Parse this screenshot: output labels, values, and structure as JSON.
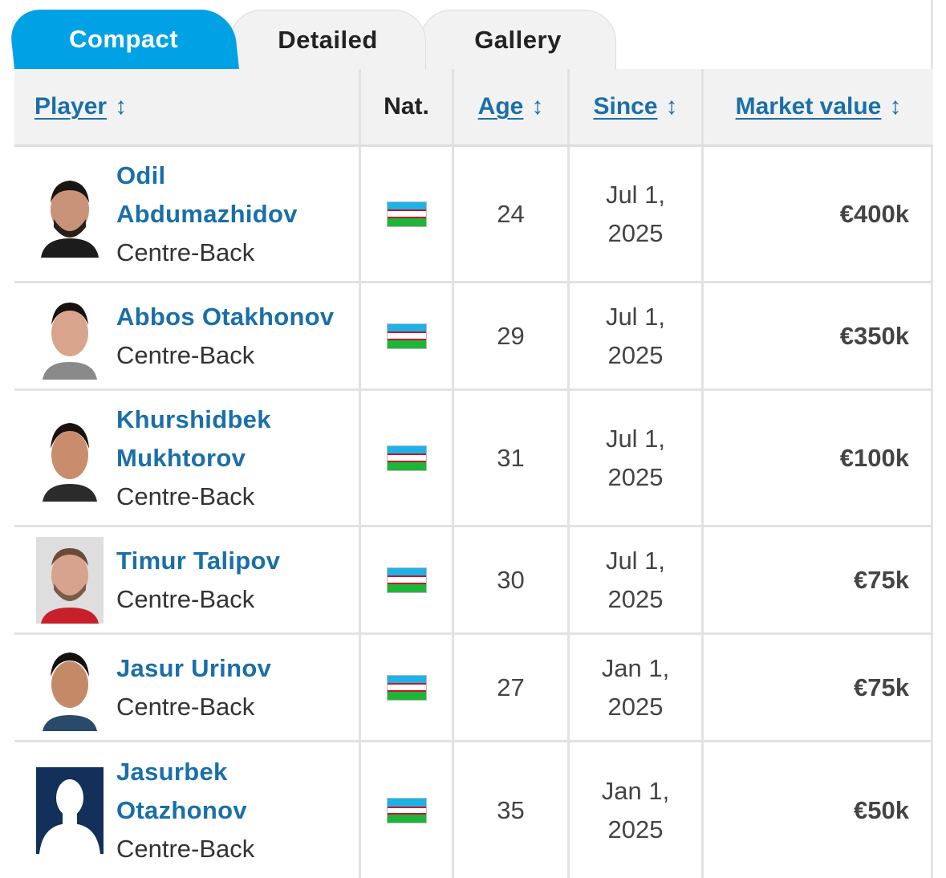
{
  "tabs": [
    {
      "label": "Compact",
      "active": true
    },
    {
      "label": "Detailed",
      "active": false
    },
    {
      "label": "Gallery",
      "active": false
    }
  ],
  "table": {
    "headers": {
      "player": "Player",
      "nat": "Nat.",
      "age": "Age",
      "since": "Since",
      "market_value": "Market value",
      "sort_icon": "↕"
    },
    "rows": [
      {
        "name": "Odil Abdumazhidov",
        "position": "Centre-Back",
        "nationality_flag": "uzbekistan-flag",
        "age": "24",
        "since": "Jul 1, 2025",
        "market_value": "€400k"
      },
      {
        "name": "Abbos Otakhonov",
        "position": "Centre-Back",
        "nationality_flag": "uzbekistan-flag",
        "age": "29",
        "since": "Jul 1, 2025",
        "market_value": "€350k"
      },
      {
        "name": "Khurshidbek Mukhtorov",
        "position": "Centre-Back",
        "nationality_flag": "uzbekistan-flag",
        "age": "31",
        "since": "Jul 1, 2025",
        "market_value": "€100k"
      },
      {
        "name": "Timur Talipov",
        "position": "Centre-Back",
        "nationality_flag": "uzbekistan-flag",
        "age": "30",
        "since": "Jul 1, 2025",
        "market_value": "€75k"
      },
      {
        "name": "Jasur Urinov",
        "position": "Centre-Back",
        "nationality_flag": "uzbekistan-flag",
        "age": "27",
        "since": "Jan 1, 2025",
        "market_value": "€75k"
      },
      {
        "name": "Jasurbek Otazhonov",
        "position": "Centre-Back",
        "nationality_flag": "uzbekistan-flag",
        "age": "35",
        "since": "Jan 1, 2025",
        "market_value": "€50k"
      }
    ]
  },
  "colors": {
    "accent": "#00a1e5",
    "link": "#1a6fa8",
    "header_bg": "#f2f2f2"
  }
}
